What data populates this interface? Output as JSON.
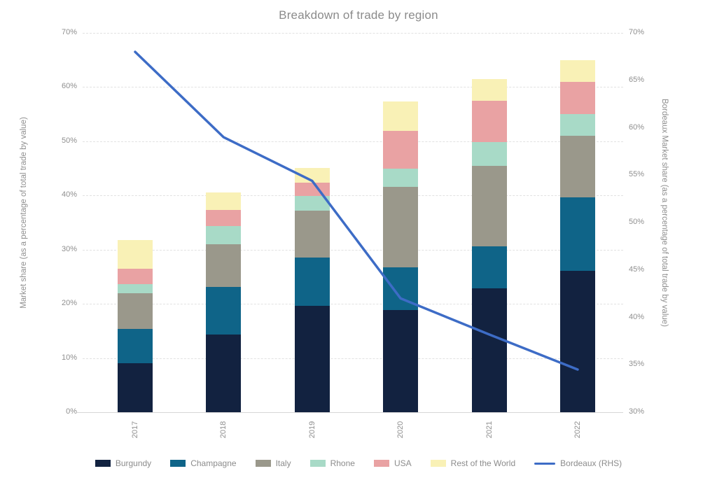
{
  "chart_data": {
    "type": "combo",
    "subtypes": [
      "stacked-bar",
      "line"
    ],
    "title": "Breakdown of trade by region",
    "categories": [
      "2017",
      "2018",
      "2019",
      "2020",
      "2021",
      "2022"
    ],
    "series": [
      {
        "name": "Burgundy",
        "type": "bar",
        "axis": "left",
        "color": "#122240",
        "values": [
          9.0,
          14.4,
          19.6,
          18.8,
          22.9,
          26.1
        ]
      },
      {
        "name": "Champagne",
        "type": "bar",
        "axis": "left",
        "color": "#0f6488",
        "values": [
          6.4,
          8.7,
          9.0,
          7.9,
          7.7,
          13.6
        ]
      },
      {
        "name": "Italy",
        "type": "bar",
        "axis": "left",
        "color": "#9a988b",
        "values": [
          6.6,
          7.9,
          8.6,
          14.9,
          14.9,
          11.3
        ]
      },
      {
        "name": "Rhone",
        "type": "bar",
        "axis": "left",
        "color": "#a8dac7",
        "values": [
          1.6,
          3.3,
          2.7,
          3.3,
          4.4,
          4.0
        ]
      },
      {
        "name": "USA",
        "type": "bar",
        "axis": "left",
        "color": "#e9a2a3",
        "values": [
          2.9,
          3.0,
          2.4,
          7.0,
          7.6,
          6.0
        ]
      },
      {
        "name": "Rest of the World",
        "type": "bar",
        "axis": "left",
        "color": "#f9f1b6",
        "values": [
          5.3,
          3.3,
          2.8,
          5.4,
          4.0,
          4.0
        ]
      },
      {
        "name": "Bordeaux (RHS)",
        "type": "line",
        "axis": "right",
        "color": "#3d6cc6",
        "values": [
          68.0,
          59.0,
          54.4,
          42.0,
          38.2,
          34.5
        ]
      }
    ],
    "left_axis": {
      "label": "Market share (as a percentage of total trade by value)",
      "min": 0,
      "max": 70,
      "ticks": [
        "0%",
        "10%",
        "20%",
        "30%",
        "40%",
        "50%",
        "60%",
        "70%"
      ]
    },
    "right_axis": {
      "label": "Bordeaux Market share (as a percentage of total trade by value)",
      "min": 30,
      "max": 70,
      "ticks": [
        "30%",
        "35%",
        "40%",
        "45%",
        "50%",
        "55%",
        "60%",
        "65%",
        "70%"
      ]
    },
    "grid": "horizontal-dashed",
    "legend_position": "bottom"
  }
}
